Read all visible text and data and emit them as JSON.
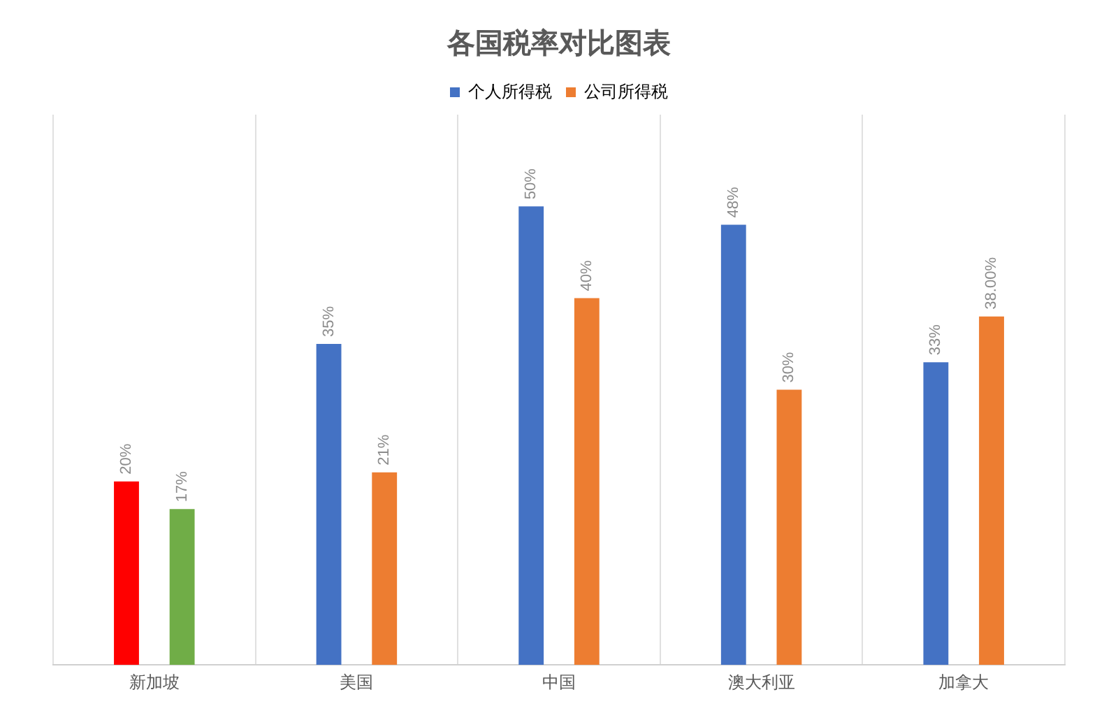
{
  "chart_data": {
    "type": "bar",
    "title": "各国税率对比图表",
    "categories": [
      "新加坡",
      "美国",
      "中国",
      "澳大利亚",
      "加拿大"
    ],
    "legend": "top",
    "grid": "x",
    "series": [
      {
        "name": "个人所得税",
        "color": "#4472c4",
        "colors": [
          "#ff0000",
          "#4472c4",
          "#4472c4",
          "#4472c4",
          "#4472c4"
        ],
        "values": [
          20,
          35,
          50,
          48,
          33
        ],
        "value_labels": [
          "20%",
          "35%",
          "50%",
          "48%",
          "33%"
        ]
      },
      {
        "name": "公司所得税",
        "color": "#ed7d31",
        "colors": [
          "#70ad47",
          "#ed7d31",
          "#ed7d31",
          "#ed7d31",
          "#ed7d31"
        ],
        "values": [
          17,
          21,
          40,
          30,
          38
        ],
        "value_labels": [
          "17%",
          "21%",
          "40%",
          "30%",
          "38.00%"
        ]
      }
    ]
  }
}
